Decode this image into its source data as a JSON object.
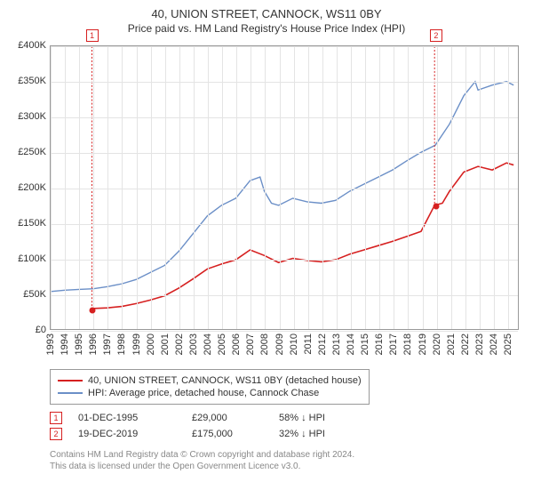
{
  "title": "40, UNION STREET, CANNOCK, WS11 0BY",
  "subtitle": "Price paid vs. HM Land Registry's House Price Index (HPI)",
  "chart": {
    "type": "line",
    "background_color": "#ffffff",
    "grid_color": "#e4e4e4",
    "border_color": "#999999",
    "y": {
      "min": 0,
      "max": 400000,
      "ticks": [
        0,
        50000,
        100000,
        150000,
        200000,
        250000,
        300000,
        350000,
        400000
      ],
      "labels": [
        "£0",
        "£50K",
        "£100K",
        "£150K",
        "£200K",
        "£250K",
        "£300K",
        "£350K",
        "£400K"
      ],
      "fontsize": 11
    },
    "x": {
      "min": 1993,
      "max": 2025.8,
      "ticks": [
        1993,
        1994,
        1995,
        1996,
        1997,
        1998,
        1999,
        2000,
        2001,
        2002,
        2003,
        2004,
        2005,
        2006,
        2007,
        2008,
        2009,
        2010,
        2011,
        2012,
        2013,
        2014,
        2015,
        2016,
        2017,
        2018,
        2019,
        2020,
        2021,
        2022,
        2023,
        2024,
        2025
      ],
      "fontsize": 11
    },
    "series": [
      {
        "name": "hpi",
        "label": "HPI: Average price, detached house, Cannock Chase",
        "color": "#6b8fc7",
        "line_width": 1.4,
        "points": [
          [
            1993,
            53000
          ],
          [
            1994,
            55000
          ],
          [
            1995,
            56000
          ],
          [
            1996,
            57000
          ],
          [
            1997,
            60000
          ],
          [
            1998,
            64000
          ],
          [
            1999,
            70000
          ],
          [
            2000,
            80000
          ],
          [
            2001,
            90000
          ],
          [
            2002,
            110000
          ],
          [
            2003,
            135000
          ],
          [
            2004,
            160000
          ],
          [
            2005,
            175000
          ],
          [
            2006,
            185000
          ],
          [
            2007,
            210000
          ],
          [
            2007.7,
            215000
          ],
          [
            2008,
            195000
          ],
          [
            2008.5,
            178000
          ],
          [
            2009,
            175000
          ],
          [
            2010,
            185000
          ],
          [
            2011,
            180000
          ],
          [
            2012,
            178000
          ],
          [
            2013,
            182000
          ],
          [
            2014,
            195000
          ],
          [
            2015,
            205000
          ],
          [
            2016,
            215000
          ],
          [
            2017,
            225000
          ],
          [
            2018,
            238000
          ],
          [
            2019,
            250000
          ],
          [
            2020,
            260000
          ],
          [
            2021,
            290000
          ],
          [
            2022,
            330000
          ],
          [
            2022.8,
            350000
          ],
          [
            2023,
            338000
          ],
          [
            2024,
            345000
          ],
          [
            2025,
            350000
          ],
          [
            2025.5,
            345000
          ]
        ]
      },
      {
        "name": "price_paid",
        "label": "40, UNION STREET, CANNOCK, WS11 0BY (detached house)",
        "color": "#d62020",
        "line_width": 1.6,
        "points": [
          [
            1995.9,
            29000
          ],
          [
            1997,
            30000
          ],
          [
            1998,
            32000
          ],
          [
            1999,
            36000
          ],
          [
            2000,
            41000
          ],
          [
            2001,
            47000
          ],
          [
            2002,
            58000
          ],
          [
            2003,
            71000
          ],
          [
            2004,
            85000
          ],
          [
            2005,
            92000
          ],
          [
            2006,
            98000
          ],
          [
            2007,
            112000
          ],
          [
            2008,
            104000
          ],
          [
            2009,
            94000
          ],
          [
            2010,
            100000
          ],
          [
            2011,
            97000
          ],
          [
            2012,
            95000
          ],
          [
            2013,
            98000
          ],
          [
            2014,
            106000
          ],
          [
            2015,
            112000
          ],
          [
            2016,
            118000
          ],
          [
            2017,
            124000
          ],
          [
            2018,
            131000
          ],
          [
            2019,
            138000
          ],
          [
            2019.95,
            175000
          ],
          [
            2020.5,
            178000
          ],
          [
            2021,
            195000
          ],
          [
            2022,
            222000
          ],
          [
            2023,
            230000
          ],
          [
            2024,
            225000
          ],
          [
            2025,
            235000
          ],
          [
            2025.5,
            232000
          ]
        ]
      }
    ],
    "sale_markers": [
      {
        "n": "1",
        "year": 1995.9,
        "price": 29000,
        "color": "#d62020"
      },
      {
        "n": "2",
        "year": 2019.95,
        "price": 175000,
        "color": "#d62020"
      }
    ]
  },
  "legend": {
    "items": [
      {
        "color": "#d62020",
        "label": "40, UNION STREET, CANNOCK, WS11 0BY (detached house)"
      },
      {
        "color": "#6b8fc7",
        "label": "HPI: Average price, detached house, Cannock Chase"
      }
    ]
  },
  "sales": [
    {
      "n": "1",
      "color": "#d62020",
      "date": "01-DEC-1995",
      "price": "£29,000",
      "pct": "58% ↓ HPI"
    },
    {
      "n": "2",
      "color": "#d62020",
      "date": "19-DEC-2019",
      "price": "£175,000",
      "pct": "32% ↓ HPI"
    }
  ],
  "footer": {
    "line1": "Contains HM Land Registry data © Crown copyright and database right 2024.",
    "line2": "This data is licensed under the Open Government Licence v3.0."
  }
}
